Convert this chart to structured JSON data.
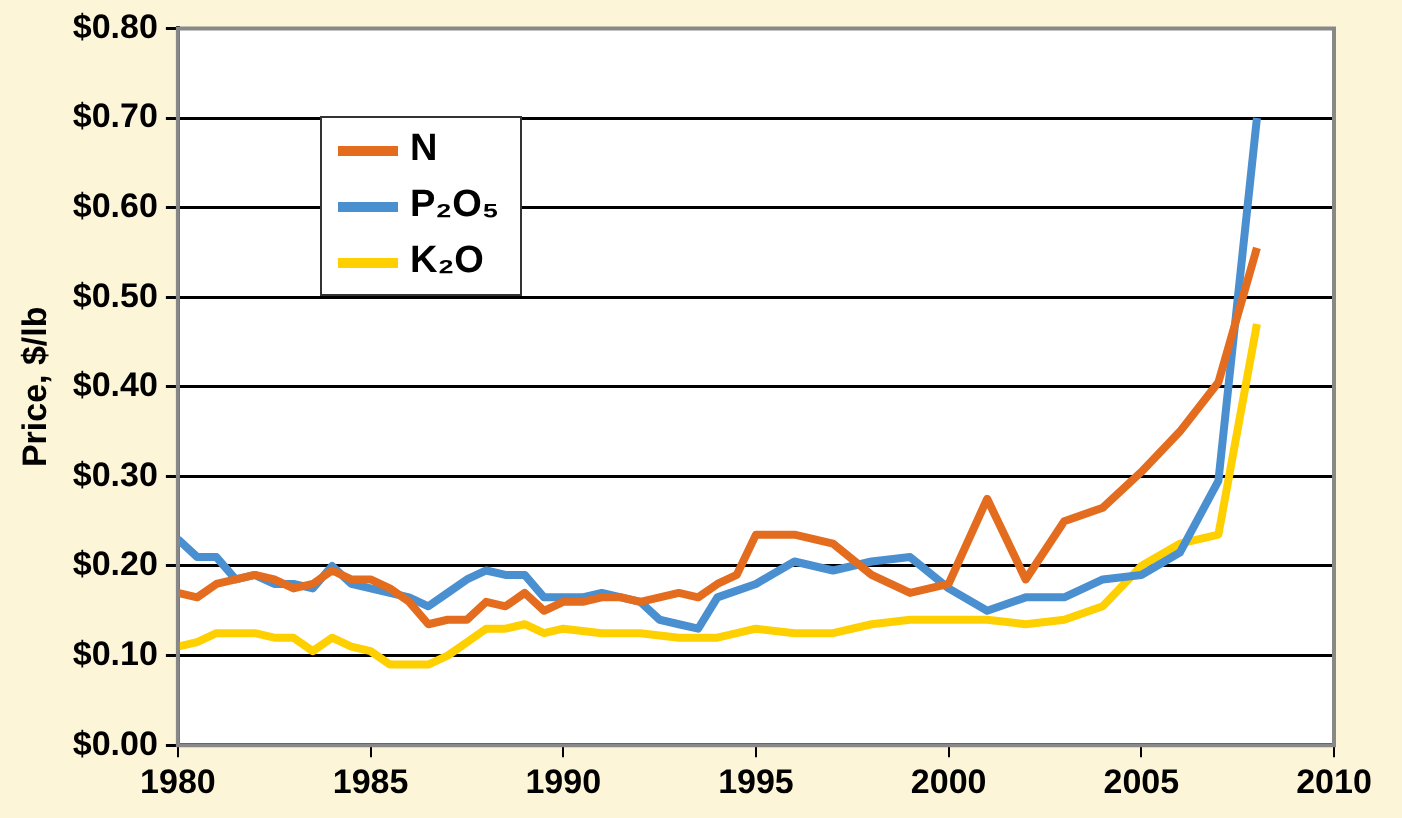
{
  "chart_data": {
    "type": "line",
    "ylabel": "Price, $/lb",
    "xlim": [
      1980,
      2010
    ],
    "xticks": [
      1980,
      1985,
      1990,
      1995,
      2000,
      2005,
      2010
    ],
    "ylim": [
      0,
      0.8
    ],
    "yticks": [
      {
        "value": 0,
        "label": "$0.00"
      },
      {
        "value": 0.1,
        "label": "$0.10"
      },
      {
        "value": 0.2,
        "label": "$0.20"
      },
      {
        "value": 0.3,
        "label": "$0.30"
      },
      {
        "value": 0.4,
        "label": "$0.40"
      },
      {
        "value": 0.5,
        "label": "$0.50"
      },
      {
        "value": 0.6,
        "label": "$0.60"
      },
      {
        "value": 0.7,
        "label": "$0.70"
      },
      {
        "value": 0.8,
        "label": "$0.80"
      }
    ],
    "grid": "y",
    "legend": "top left",
    "line_style": "solid",
    "series": [
      {
        "name": "N",
        "color": "#e46c1e",
        "x": [
          1980,
          1980.5,
          1981,
          1981.5,
          1982,
          1982.5,
          1983,
          1983.5,
          1984,
          1984.5,
          1985,
          1985.5,
          1986,
          1986.5,
          1987,
          1987.5,
          1988,
          1988.5,
          1989,
          1989.5,
          1990,
          1990.5,
          1991,
          1991.5,
          1992,
          1992.5,
          1993,
          1993.5,
          1994,
          1994.5,
          1995,
          1996,
          1997,
          1998,
          1999,
          2000,
          2001,
          2002,
          2003,
          2004,
          2005,
          2006,
          2007,
          2008
        ],
        "values": [
          0.17,
          0.165,
          0.18,
          0.185,
          0.19,
          0.185,
          0.175,
          0.18,
          0.195,
          0.185,
          0.185,
          0.175,
          0.16,
          0.135,
          0.14,
          0.14,
          0.16,
          0.155,
          0.17,
          0.15,
          0.16,
          0.16,
          0.165,
          0.165,
          0.16,
          0.165,
          0.17,
          0.165,
          0.18,
          0.19,
          0.235,
          0.235,
          0.225,
          0.19,
          0.17,
          0.18,
          0.275,
          0.185,
          0.25,
          0.265,
          0.305,
          0.35,
          0.405,
          0.555
        ]
      },
      {
        "name": "P₂O₅",
        "color": "#4a8fd0",
        "x": [
          1980,
          1980.5,
          1981,
          1981.5,
          1982,
          1982.5,
          1983,
          1983.5,
          1984,
          1984.5,
          1985,
          1985.5,
          1986,
          1986.5,
          1987,
          1987.5,
          1988,
          1988.5,
          1989,
          1989.5,
          1990,
          1990.5,
          1991,
          1991.5,
          1992,
          1992.5,
          1993,
          1993.5,
          1994,
          1995,
          1996,
          1997,
          1998,
          1999,
          2000,
          2001,
          2002,
          2003,
          2004,
          2005,
          2006,
          2007,
          2008
        ],
        "values": [
          0.23,
          0.21,
          0.21,
          0.185,
          0.19,
          0.18,
          0.18,
          0.175,
          0.2,
          0.18,
          0.175,
          0.17,
          0.165,
          0.155,
          0.17,
          0.185,
          0.195,
          0.19,
          0.19,
          0.165,
          0.165,
          0.165,
          0.17,
          0.165,
          0.16,
          0.14,
          0.135,
          0.13,
          0.165,
          0.18,
          0.205,
          0.195,
          0.205,
          0.21,
          0.175,
          0.15,
          0.165,
          0.165,
          0.185,
          0.19,
          0.215,
          0.295,
          0.7
        ]
      },
      {
        "name": "K₂O",
        "color": "#ffd000",
        "x": [
          1980,
          1980.5,
          1981,
          1981.5,
          1982,
          1982.5,
          1983,
          1983.5,
          1984,
          1984.5,
          1985,
          1985.5,
          1986,
          1986.5,
          1987,
          1987.5,
          1988,
          1988.5,
          1989,
          1989.5,
          1990,
          1991,
          1992,
          1993,
          1994,
          1995,
          1996,
          1997,
          1998,
          1999,
          2000,
          2001,
          2002,
          2003,
          2004,
          2005,
          2006,
          2007,
          2008
        ],
        "values": [
          0.11,
          0.115,
          0.125,
          0.125,
          0.125,
          0.12,
          0.12,
          0.105,
          0.12,
          0.11,
          0.105,
          0.09,
          0.09,
          0.09,
          0.1,
          0.115,
          0.13,
          0.13,
          0.135,
          0.125,
          0.13,
          0.125,
          0.125,
          0.12,
          0.12,
          0.13,
          0.125,
          0.125,
          0.135,
          0.14,
          0.14,
          0.14,
          0.135,
          0.14,
          0.155,
          0.2,
          0.225,
          0.235,
          0.47
        ]
      }
    ]
  }
}
